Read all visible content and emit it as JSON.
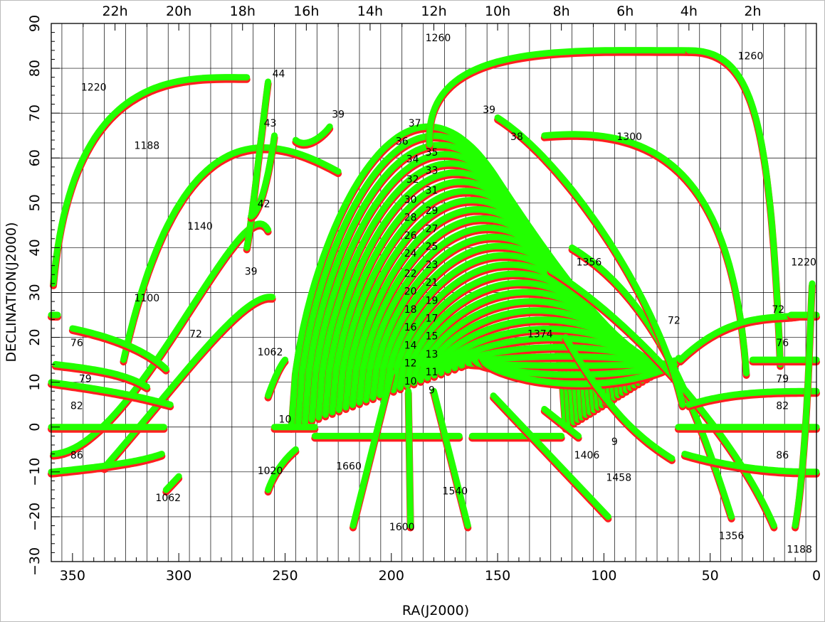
{
  "chart_data": {
    "type": "scatter",
    "xlabel": "RA(J2000)",
    "ylabel": "DECLINATION(J2000)",
    "xlim": [
      360,
      0
    ],
    "ylim": [
      -30,
      90
    ],
    "grid": true,
    "x_ticks": [
      "350",
      "300",
      "250",
      "200",
      "150",
      "100",
      "50",
      "0"
    ],
    "y_ticks": [
      "90",
      "80",
      "70",
      "60",
      "50",
      "40",
      "30",
      "20",
      "10",
      "0",
      "−10",
      "−20",
      "−30"
    ],
    "top_ticks": [
      "22h",
      "20h",
      "18h",
      "16h",
      "14h",
      "12h",
      "10h",
      "8h",
      "6h",
      "4h",
      "2h"
    ],
    "colors": {
      "red": "#ff2020",
      "green": "#22ff00"
    },
    "annotations": [
      {
        "text": "1260",
        "x": 178,
        "y": 86
      },
      {
        "text": "1260",
        "x": 31,
        "y": 82
      },
      {
        "text": "1220",
        "x": 340,
        "y": 75
      },
      {
        "text": "44",
        "x": 253,
        "y": 78
      },
      {
        "text": "43",
        "x": 257,
        "y": 67
      },
      {
        "text": "39",
        "x": 225,
        "y": 69
      },
      {
        "text": "39",
        "x": 154,
        "y": 70
      },
      {
        "text": "38",
        "x": 141,
        "y": 64
      },
      {
        "text": "37",
        "x": 189,
        "y": 67
      },
      {
        "text": "36",
        "x": 195,
        "y": 63
      },
      {
        "text": "35",
        "x": 181,
        "y": 60.5
      },
      {
        "text": "34",
        "x": 190,
        "y": 59
      },
      {
        "text": "33",
        "x": 181,
        "y": 56.5
      },
      {
        "text": "32",
        "x": 190,
        "y": 54.5
      },
      {
        "text": "31",
        "x": 181,
        "y": 52
      },
      {
        "text": "30",
        "x": 191,
        "y": 50
      },
      {
        "text": "29",
        "x": 181,
        "y": 47.5
      },
      {
        "text": "28",
        "x": 191,
        "y": 46
      },
      {
        "text": "27",
        "x": 181,
        "y": 43.5
      },
      {
        "text": "26",
        "x": 191,
        "y": 42
      },
      {
        "text": "25",
        "x": 181,
        "y": 39.5
      },
      {
        "text": "24",
        "x": 191,
        "y": 38
      },
      {
        "text": "23",
        "x": 181,
        "y": 35.5
      },
      {
        "text": "22",
        "x": 191,
        "y": 33.5
      },
      {
        "text": "21",
        "x": 181,
        "y": 31.5
      },
      {
        "text": "20",
        "x": 191,
        "y": 29.5
      },
      {
        "text": "19",
        "x": 181,
        "y": 27.5
      },
      {
        "text": "18",
        "x": 191,
        "y": 25.5
      },
      {
        "text": "17",
        "x": 181,
        "y": 23.5
      },
      {
        "text": "16",
        "x": 191,
        "y": 21.5
      },
      {
        "text": "15",
        "x": 181,
        "y": 19.5
      },
      {
        "text": "14",
        "x": 191,
        "y": 17.5
      },
      {
        "text": "13",
        "x": 181,
        "y": 15.5
      },
      {
        "text": "12",
        "x": 191,
        "y": 13.5
      },
      {
        "text": "11",
        "x": 181,
        "y": 11.5
      },
      {
        "text": "10",
        "x": 191,
        "y": 9.5
      },
      {
        "text": "9",
        "x": 181,
        "y": 7.5
      },
      {
        "text": "1188",
        "x": 315,
        "y": 62
      },
      {
        "text": "1300",
        "x": 88,
        "y": 64
      },
      {
        "text": "42",
        "x": 260,
        "y": 49
      },
      {
        "text": "1140",
        "x": 290,
        "y": 44
      },
      {
        "text": "39",
        "x": 266,
        "y": 34
      },
      {
        "text": "1356",
        "x": 107,
        "y": 36
      },
      {
        "text": "1220",
        "x": 6,
        "y": 36
      },
      {
        "text": "1100",
        "x": 315,
        "y": 28
      },
      {
        "text": "72",
        "x": 18,
        "y": 25.5
      },
      {
        "text": "72",
        "x": 67,
        "y": 23
      },
      {
        "text": "72",
        "x": 292,
        "y": 20
      },
      {
        "text": "1374",
        "x": 130,
        "y": 20
      },
      {
        "text": "76",
        "x": 348,
        "y": 18
      },
      {
        "text": "76",
        "x": 16,
        "y": 18
      },
      {
        "text": "1062",
        "x": 257,
        "y": 16
      },
      {
        "text": "79",
        "x": 344,
        "y": 10
      },
      {
        "text": "79",
        "x": 16,
        "y": 10
      },
      {
        "text": "82",
        "x": 348,
        "y": 4
      },
      {
        "text": "82",
        "x": 16,
        "y": 4
      },
      {
        "text": "10",
        "x": 250,
        "y": 1
      },
      {
        "text": "9",
        "x": 95,
        "y": -4
      },
      {
        "text": "1406",
        "x": 108,
        "y": -7
      },
      {
        "text": "86",
        "x": 348,
        "y": -7
      },
      {
        "text": "86",
        "x": 16,
        "y": -7
      },
      {
        "text": "1020",
        "x": 257,
        "y": -10.5
      },
      {
        "text": "1660",
        "x": 220,
        "y": -9.5
      },
      {
        "text": "1458",
        "x": 93,
        "y": -12
      },
      {
        "text": "1540",
        "x": 170,
        "y": -15
      },
      {
        "text": "1062",
        "x": 305,
        "y": -16.5
      },
      {
        "text": "1600",
        "x": 195,
        "y": -23
      },
      {
        "text": "1356",
        "x": 40,
        "y": -25
      },
      {
        "text": "1188",
        "x": 8,
        "y": -28
      }
    ]
  }
}
